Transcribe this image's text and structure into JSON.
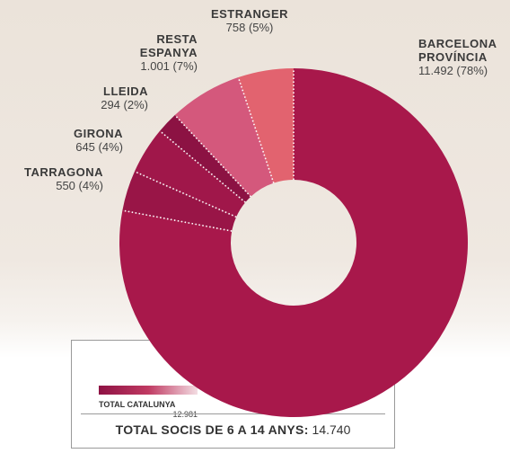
{
  "chart_data": {
    "type": "donut",
    "categories": [
      "BARCELONA PROVÍNCIA",
      "TARRAGONA",
      "GIRONA",
      "LLEIDA",
      "RESTA ESPANYA",
      "ESTRANGER"
    ],
    "values": [
      11492,
      550,
      645,
      294,
      1001,
      758
    ],
    "value_labels": [
      "11.492",
      "550",
      "645",
      "294",
      "1.001",
      "758"
    ],
    "percents": [
      78,
      4,
      4,
      2,
      7,
      5
    ],
    "percent_labels": [
      "(78%)",
      "(4%)",
      "(4%)",
      "(2%)",
      "(7%)",
      "(5%)"
    ],
    "colors": [
      "#a8184b",
      "#991547",
      "#a0174a",
      "#8c1243",
      "#d4587c",
      "#e2636f"
    ],
    "legend": {
      "label": "TOTAL CATALUNYA",
      "value": 12981,
      "value_label": "12.981"
    },
    "total": {
      "label": "TOTAL SOCIS DE 6 A 14 ANYS:",
      "value": 14740,
      "value_label": "14.740"
    }
  }
}
